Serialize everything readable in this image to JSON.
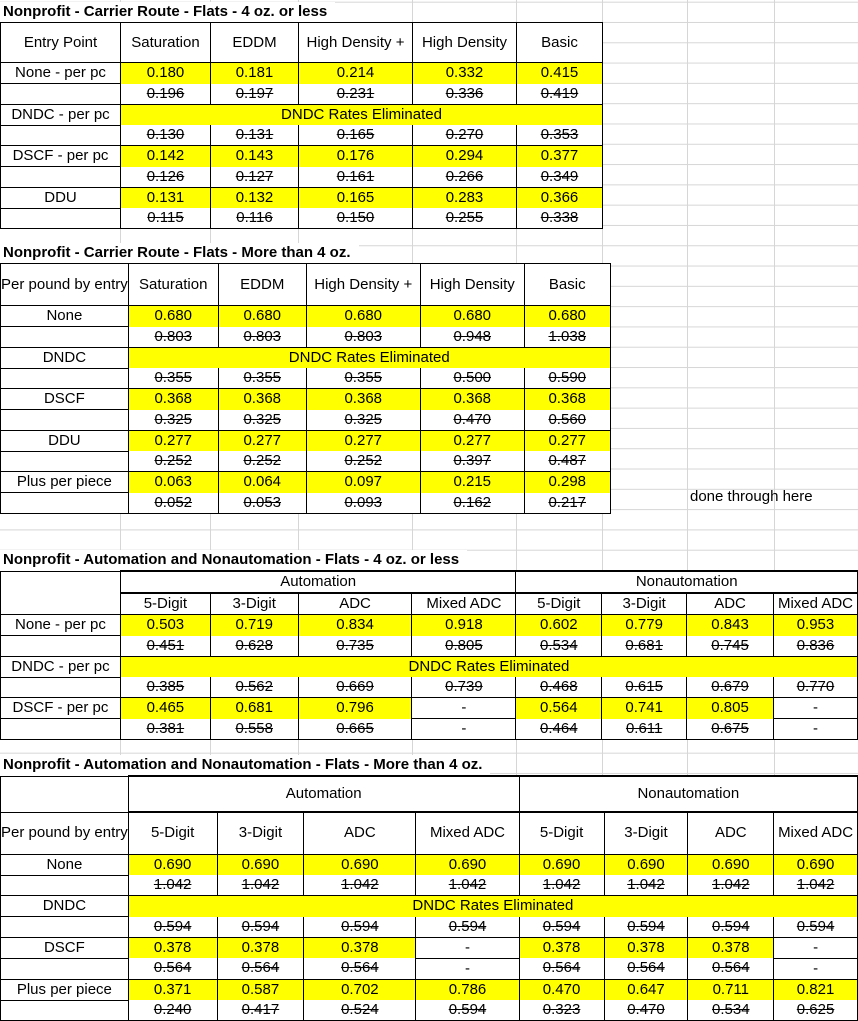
{
  "colors": {
    "highlight": "#ffff00",
    "grid_line": "#d6d6d6",
    "border": "#000000",
    "text": "#000000"
  },
  "note": "done through here",
  "tables": [
    {
      "title": "Nonprofit - Carrier Route - Flats - 4 oz. or less",
      "corner_label": "Entry Point",
      "columns": [
        "Saturation",
        "EDDM",
        "High Density +",
        "High Density",
        "Basic"
      ],
      "rows": [
        {
          "type": "current",
          "label": "None - per pc",
          "values": [
            "0.180",
            "0.181",
            "0.214",
            "0.332",
            "0.415"
          ]
        },
        {
          "type": "old",
          "label": "",
          "values": [
            "0.196",
            "0.197",
            "0.231",
            "0.336",
            "0.419"
          ]
        },
        {
          "type": "banner",
          "label": "DNDC - per pc",
          "banner": "DNDC Rates Eliminated"
        },
        {
          "type": "old",
          "label": "",
          "values": [
            "0.130",
            "0.131",
            "0.165",
            "0.270",
            "0.353"
          ]
        },
        {
          "type": "current",
          "label": "DSCF - per pc",
          "values": [
            "0.142",
            "0.143",
            "0.176",
            "0.294",
            "0.377"
          ]
        },
        {
          "type": "old",
          "label": "",
          "values": [
            "0.126",
            "0.127",
            "0.161",
            "0.266",
            "0.349"
          ]
        },
        {
          "type": "current",
          "label": "DDU",
          "values": [
            "0.131",
            "0.132",
            "0.165",
            "0.283",
            "0.366"
          ]
        },
        {
          "type": "old",
          "label": "",
          "values": [
            "0.115",
            "0.116",
            "0.150",
            "0.255",
            "0.338"
          ]
        }
      ]
    },
    {
      "title": "Nonprofit - Carrier Route - Flats - More than 4 oz.",
      "corner_label": "Per pound by entry",
      "columns": [
        "Saturation",
        "EDDM",
        "High Density +",
        "High Density",
        "Basic"
      ],
      "rows": [
        {
          "type": "current",
          "label": "None",
          "values": [
            "0.680",
            "0.680",
            "0.680",
            "0.680",
            "0.680"
          ]
        },
        {
          "type": "old",
          "label": "",
          "values": [
            "0.803",
            "0.803",
            "0.803",
            "0.948",
            "1.038"
          ]
        },
        {
          "type": "banner",
          "label": "DNDC",
          "banner": "DNDC Rates Eliminated"
        },
        {
          "type": "old",
          "label": "",
          "values": [
            "0.355",
            "0.355",
            "0.355",
            "0.500",
            "0.590"
          ]
        },
        {
          "type": "current",
          "label": "DSCF",
          "values": [
            "0.368",
            "0.368",
            "0.368",
            "0.368",
            "0.368"
          ]
        },
        {
          "type": "old",
          "label": "",
          "values": [
            "0.325",
            "0.325",
            "0.325",
            "0.470",
            "0.560"
          ]
        },
        {
          "type": "current",
          "label": "DDU",
          "values": [
            "0.277",
            "0.277",
            "0.277",
            "0.277",
            "0.277"
          ]
        },
        {
          "type": "old",
          "label": "",
          "values": [
            "0.252",
            "0.252",
            "0.252",
            "0.397",
            "0.487"
          ]
        },
        {
          "type": "current",
          "label": "Plus per piece",
          "values": [
            "0.063",
            "0.064",
            "0.097",
            "0.215",
            "0.298"
          ]
        },
        {
          "type": "old",
          "label": "",
          "values": [
            "0.052",
            "0.053",
            "0.093",
            "0.162",
            "0.217"
          ]
        }
      ]
    },
    {
      "title": "Nonprofit - Automation and Nonautomation - Flats - 4 oz. or less",
      "corner_label": "",
      "groups": [
        {
          "label": "Automation",
          "span": 4
        },
        {
          "label": "Nonautomation",
          "span": 4
        }
      ],
      "columns": [
        "5-Digit",
        "3-Digit",
        "ADC",
        "Mixed ADC",
        "5-Digit",
        "3-Digit",
        "ADC",
        "Mixed ADC"
      ],
      "rows": [
        {
          "type": "current",
          "label": "None - per pc",
          "values": [
            "0.503",
            "0.719",
            "0.834",
            "0.918",
            "0.602",
            "0.779",
            "0.843",
            "0.953"
          ]
        },
        {
          "type": "old",
          "label": "",
          "values": [
            "0.451",
            "0.628",
            "0.735",
            "0.805",
            "0.534",
            "0.681",
            "0.745",
            "0.836"
          ]
        },
        {
          "type": "banner",
          "label": "DNDC - per pc",
          "banner": "DNDC Rates Eliminated"
        },
        {
          "type": "old",
          "label": "",
          "values": [
            "0.385",
            "0.562",
            "0.669",
            "0.739",
            "0.468",
            "0.615",
            "0.679",
            "0.770"
          ]
        },
        {
          "type": "current",
          "label": "DSCF - per pc",
          "values": [
            "0.465",
            "0.681",
            "0.796",
            "-",
            "0.564",
            "0.741",
            "0.805",
            "-"
          ]
        },
        {
          "type": "old",
          "label": "",
          "values": [
            "0.381",
            "0.558",
            "0.665",
            "-",
            "0.464",
            "0.611",
            "0.675",
            "-"
          ]
        }
      ]
    },
    {
      "title": "Nonprofit - Automation and Nonautomation - Flats - More than 4 oz.",
      "corner_label": "Per pound by entry",
      "groups": [
        {
          "label": "Automation",
          "span": 4
        },
        {
          "label": "Nonautomation",
          "span": 4
        }
      ],
      "columns": [
        "5-Digit",
        "3-Digit",
        "ADC",
        "Mixed ADC",
        "5-Digit",
        "3-Digit",
        "ADC",
        "Mixed ADC"
      ],
      "rows": [
        {
          "type": "current",
          "label": "None",
          "values": [
            "0.690",
            "0.690",
            "0.690",
            "0.690",
            "0.690",
            "0.690",
            "0.690",
            "0.690"
          ]
        },
        {
          "type": "old",
          "label": "",
          "values": [
            "1.042",
            "1.042",
            "1.042",
            "1.042",
            "1.042",
            "1.042",
            "1.042",
            "1.042"
          ]
        },
        {
          "type": "banner",
          "label": "DNDC",
          "banner": "DNDC Rates Eliminated"
        },
        {
          "type": "old",
          "label": "",
          "values": [
            "0.594",
            "0.594",
            "0.594",
            "0.594",
            "0.594",
            "0.594",
            "0.594",
            "0.594"
          ]
        },
        {
          "type": "current",
          "label": "DSCF",
          "values": [
            "0.378",
            "0.378",
            "0.378",
            "-",
            "0.378",
            "0.378",
            "0.378",
            "-"
          ]
        },
        {
          "type": "old",
          "label": "",
          "values": [
            "0.564",
            "0.564",
            "0.564",
            "-",
            "0.564",
            "0.564",
            "0.564",
            "-"
          ]
        },
        {
          "type": "current",
          "label": "Plus per piece",
          "values": [
            "0.371",
            "0.587",
            "0.702",
            "0.786",
            "0.470",
            "0.647",
            "0.711",
            "0.821"
          ]
        },
        {
          "type": "old",
          "label": "",
          "values": [
            "0.240",
            "0.417",
            "0.524",
            "0.594",
            "0.323",
            "0.470",
            "0.534",
            "0.625"
          ]
        }
      ]
    }
  ]
}
